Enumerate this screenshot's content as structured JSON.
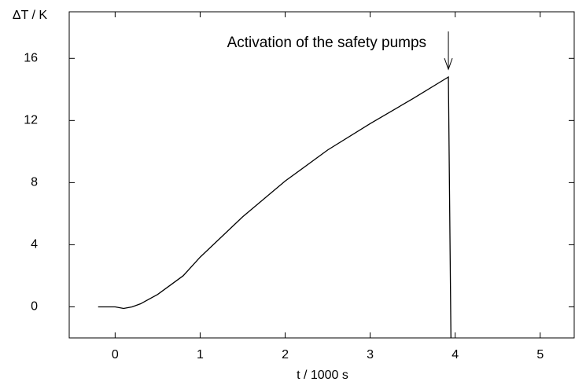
{
  "chart_data": {
    "type": "line",
    "x_label": "t / 1000 s",
    "y_label": "ΔT / K",
    "x": [
      -0.2,
      0,
      0.1,
      0.2,
      0.3,
      0.5,
      0.8,
      1.0,
      1.5,
      2.0,
      2.5,
      3.0,
      3.5,
      3.92,
      3.95
    ],
    "series": [
      {
        "color": "#000000",
        "values": [
          0,
          0,
          -0.1,
          0,
          0.2,
          0.8,
          2.0,
          3.2,
          5.8,
          8.1,
          10.1,
          11.8,
          13.4,
          14.8,
          -2
        ]
      }
    ],
    "xlim": [
      -0.54,
      5.4
    ],
    "ylim": [
      -2,
      19
    ],
    "xticks": [
      0,
      1,
      2,
      3,
      4,
      5
    ],
    "yticks": [
      0,
      4,
      8,
      12,
      16
    ],
    "annotation": {
      "text": "Activation of the safety pumps",
      "x": 3.92,
      "y": 15.3
    },
    "grid": false
  }
}
